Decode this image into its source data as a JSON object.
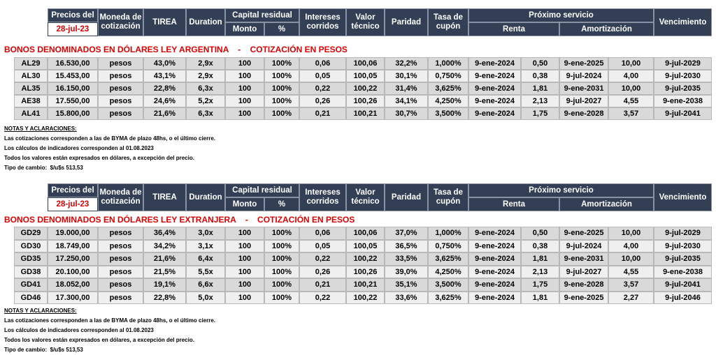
{
  "sections": [
    {
      "header": {
        "precios_del": "Precios del",
        "fecha": "28-jul-23",
        "moneda": "Moneda de cotización",
        "tirea": "TIREA",
        "duration": "Duration",
        "capital_residual": "Capital residual",
        "monto": "Monto",
        "pct": "%",
        "intereses": "Intereses corridos",
        "valor": "Valor técnico",
        "paridad": "Paridad",
        "tasa": "Tasa de cupón",
        "proximo": "Próximo servicio",
        "renta": "Renta",
        "amortizacion": "Amortización",
        "vencimiento": "Vencimiento"
      },
      "title": "BONOS DENOMINADOS EN DÓLARES LEY ARGENTINA    -    COTIZACIÓN EN PESOS",
      "rows": [
        [
          "AL29",
          "16.530,00",
          "pesos",
          "43,0%",
          "2,9x",
          "100",
          "100%",
          "0,06",
          "100,06",
          "32,2%",
          "1,000%",
          "9-ene-2024",
          "0,50",
          "9-ene-2025",
          "10,00",
          "9-jul-2029"
        ],
        [
          "AL30",
          "15.453,00",
          "pesos",
          "43,1%",
          "2,9x",
          "100",
          "100%",
          "0,05",
          "100,05",
          "30,1%",
          "0,750%",
          "9-ene-2024",
          "0,38",
          "9-jul-2024",
          "4,00",
          "9-jul-2030"
        ],
        [
          "AL35",
          "16.150,00",
          "pesos",
          "22,8%",
          "6,3x",
          "100",
          "100%",
          "0,22",
          "100,22",
          "31,4%",
          "3,625%",
          "9-ene-2024",
          "1,81",
          "9-ene-2031",
          "10,00",
          "9-jul-2035"
        ],
        [
          "AE38",
          "17.550,00",
          "pesos",
          "24,6%",
          "5,2x",
          "100",
          "100%",
          "0,26",
          "100,26",
          "34,1%",
          "4,250%",
          "9-ene-2024",
          "2,13",
          "9-jul-2027",
          "4,55",
          "9-ene-2038"
        ],
        [
          "AL41",
          "15.800,00",
          "pesos",
          "21,6%",
          "6,3x",
          "100",
          "100%",
          "0,21",
          "100,21",
          "30,7%",
          "3,500%",
          "9-ene-2024",
          "1,75",
          "9-ene-2028",
          "3,57",
          "9-jul-2041"
        ]
      ],
      "notes": {
        "heading": "NOTAS Y ACLARACIONES:",
        "lines": [
          "Las cotizaciones corresponden a las de BYMA de plazo 48hs, o el último cierre.",
          "Los cálculos de indicadores corresponden al 01.08.2023",
          "Todos los valores están expresados en dólares, a excepción del precio.",
          "Tipo de cambio:  $/u$s 513,53"
        ]
      }
    },
    {
      "header": {
        "precios_del": "Precios del",
        "fecha": "28-jul-23",
        "moneda": "Moneda de cotización",
        "tirea": "TIREA",
        "duration": "Duration",
        "capital_residual": "Capital residual",
        "monto": "Monto",
        "pct": "%",
        "intereses": "Intereses corridos",
        "valor": "Valor técnico",
        "paridad": "Paridad",
        "tasa": "Tasa de cupón",
        "proximo": "Próximo servicio",
        "renta": "Renta",
        "amortizacion": "Amortización",
        "vencimiento": "Vencimiento"
      },
      "title": "BONOS DENOMINADOS EN DÓLARES LEY EXTRANJERA    -    COTIZACIÓN EN PESOS",
      "rows": [
        [
          "GD29",
          "19.000,00",
          "pesos",
          "36,4%",
          "3,0x",
          "100",
          "100%",
          "0,06",
          "100,06",
          "37,0%",
          "1,000%",
          "9-ene-2024",
          "0,50",
          "9-ene-2025",
          "10,00",
          "9-jul-2029"
        ],
        [
          "GD30",
          "18.749,00",
          "pesos",
          "34,2%",
          "3,1x",
          "100",
          "100%",
          "0,05",
          "100,05",
          "36,5%",
          "0,750%",
          "9-ene-2024",
          "0,38",
          "9-jul-2024",
          "4,00",
          "9-jul-2030"
        ],
        [
          "GD35",
          "17.250,00",
          "pesos",
          "21,6%",
          "6,4x",
          "100",
          "100%",
          "0,22",
          "100,22",
          "33,5%",
          "3,625%",
          "9-ene-2024",
          "1,81",
          "9-ene-2031",
          "10,00",
          "9-jul-2035"
        ],
        [
          "GD38",
          "20.100,00",
          "pesos",
          "21,5%",
          "5,5x",
          "100",
          "100%",
          "0,26",
          "100,26",
          "39,0%",
          "4,250%",
          "9-ene-2024",
          "2,13",
          "9-jul-2027",
          "4,55",
          "9-ene-2038"
        ],
        [
          "GD41",
          "18.052,00",
          "pesos",
          "19,1%",
          "6,6x",
          "100",
          "100%",
          "0,21",
          "100,21",
          "35,1%",
          "3,500%",
          "9-ene-2024",
          "1,75",
          "9-ene-2028",
          "3,57",
          "9-jul-2041"
        ],
        [
          "GD46",
          "17.300,00",
          "pesos",
          "22,8%",
          "5,0x",
          "100",
          "100%",
          "0,22",
          "100,22",
          "33,6%",
          "3,625%",
          "9-ene-2024",
          "1,81",
          "9-ene-2025",
          "2,27",
          "9-jul-2046"
        ]
      ],
      "notes": {
        "heading": "NOTAS Y ACLARACIONES:",
        "lines": [
          "Las cotizaciones corresponden a las de BYMA de plazo 48hs, o el último cierre.",
          "Los cálculos de indicadores corresponden al 01.08.2023",
          "Todos los valores están expresados en dólares, a excepción del precio.",
          "Tipo de cambio:  $/u$s 513,53"
        ]
      }
    }
  ]
}
